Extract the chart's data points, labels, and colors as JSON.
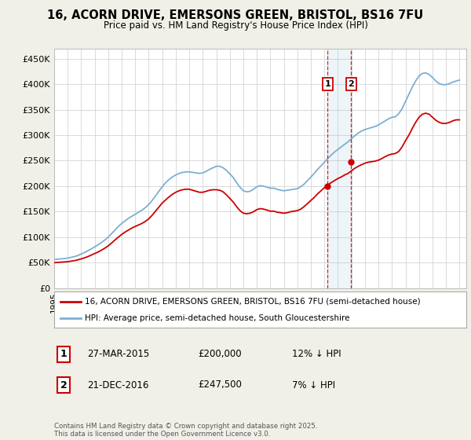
{
  "title": "16, ACORN DRIVE, EMERSONS GREEN, BRISTOL, BS16 7FU",
  "subtitle": "Price paid vs. HM Land Registry's House Price Index (HPI)",
  "ylabel_ticks": [
    "£0",
    "£50K",
    "£100K",
    "£150K",
    "£200K",
    "£250K",
    "£300K",
    "£350K",
    "£400K",
    "£450K"
  ],
  "ytick_values": [
    0,
    50000,
    100000,
    150000,
    200000,
    250000,
    300000,
    350000,
    400000,
    450000
  ],
  "ylim": [
    0,
    470000
  ],
  "xlim_start": 1995.0,
  "xlim_end": 2025.5,
  "legend_line1": "16, ACORN DRIVE, EMERSONS GREEN, BRISTOL, BS16 7FU (semi-detached house)",
  "legend_line2": "HPI: Average price, semi-detached house, South Gloucestershire",
  "sale1_date": "27-MAR-2015",
  "sale1_price": "£200,000",
  "sale1_hpi": "12% ↓ HPI",
  "sale1_label": "1",
  "sale1_x": 2015.23,
  "sale1_y": 200000,
  "sale2_date": "21-DEC-2016",
  "sale2_price": "£247,500",
  "sale2_hpi": "7% ↓ HPI",
  "sale2_label": "2",
  "sale2_x": 2016.97,
  "sale2_y": 247500,
  "footer": "Contains HM Land Registry data © Crown copyright and database right 2025.\nThis data is licensed under the Open Government Licence v3.0.",
  "line_color_red": "#cc0000",
  "line_color_blue": "#7ab0d4",
  "bg_color": "#f0f0e8",
  "plot_bg": "#ffffff",
  "hpi_data_x": [
    1995.0,
    1995.25,
    1995.5,
    1995.75,
    1996.0,
    1996.25,
    1996.5,
    1996.75,
    1997.0,
    1997.25,
    1997.5,
    1997.75,
    1998.0,
    1998.25,
    1998.5,
    1998.75,
    1999.0,
    1999.25,
    1999.5,
    1999.75,
    2000.0,
    2000.25,
    2000.5,
    2000.75,
    2001.0,
    2001.25,
    2001.5,
    2001.75,
    2002.0,
    2002.25,
    2002.5,
    2002.75,
    2003.0,
    2003.25,
    2003.5,
    2003.75,
    2004.0,
    2004.25,
    2004.5,
    2004.75,
    2005.0,
    2005.25,
    2005.5,
    2005.75,
    2006.0,
    2006.25,
    2006.5,
    2006.75,
    2007.0,
    2007.25,
    2007.5,
    2007.75,
    2008.0,
    2008.25,
    2008.5,
    2008.75,
    2009.0,
    2009.25,
    2009.5,
    2009.75,
    2010.0,
    2010.25,
    2010.5,
    2010.75,
    2011.0,
    2011.25,
    2011.5,
    2011.75,
    2012.0,
    2012.25,
    2012.5,
    2012.75,
    2013.0,
    2013.25,
    2013.5,
    2013.75,
    2014.0,
    2014.25,
    2014.5,
    2014.75,
    2015.0,
    2015.25,
    2015.5,
    2015.75,
    2016.0,
    2016.25,
    2016.5,
    2016.75,
    2017.0,
    2017.25,
    2017.5,
    2017.75,
    2018.0,
    2018.25,
    2018.5,
    2018.75,
    2019.0,
    2019.25,
    2019.5,
    2019.75,
    2020.0,
    2020.25,
    2020.5,
    2020.75,
    2021.0,
    2021.25,
    2021.5,
    2021.75,
    2022.0,
    2022.25,
    2022.5,
    2022.75,
    2023.0,
    2023.25,
    2023.5,
    2023.75,
    2024.0,
    2024.25,
    2024.5,
    2024.75,
    2025.0
  ],
  "hpi_data_y": [
    56000,
    57000,
    57500,
    58000,
    59000,
    60500,
    62000,
    64000,
    67000,
    70000,
    73500,
    77000,
    81000,
    85000,
    89500,
    94500,
    100000,
    107000,
    114000,
    121000,
    127000,
    132000,
    137000,
    141000,
    145000,
    149000,
    153000,
    158000,
    164000,
    172000,
    181000,
    190000,
    199000,
    207000,
    213000,
    218000,
    222000,
    225000,
    227000,
    228000,
    228000,
    227000,
    226000,
    225000,
    226000,
    229000,
    233000,
    236000,
    239000,
    239000,
    236000,
    231000,
    224000,
    217000,
    207000,
    198000,
    191000,
    189000,
    190000,
    194000,
    199000,
    201000,
    200000,
    198000,
    196000,
    196000,
    194000,
    192000,
    191000,
    192000,
    193000,
    194000,
    195000,
    199000,
    204000,
    211000,
    218000,
    225000,
    233000,
    240000,
    247000,
    254000,
    261000,
    267000,
    272000,
    277000,
    282000,
    287000,
    293000,
    299000,
    304000,
    308000,
    311000,
    313000,
    315000,
    317000,
    320000,
    324000,
    328000,
    332000,
    335000,
    336000,
    342000,
    352000,
    366000,
    380000,
    394000,
    406000,
    416000,
    421000,
    422000,
    419000,
    413000,
    406000,
    401000,
    399000,
    399000,
    401000,
    404000,
    406000,
    408000
  ],
  "price_data_x": [
    1995.0,
    1995.25,
    1995.5,
    1995.75,
    1996.0,
    1996.25,
    1996.5,
    1996.75,
    1997.0,
    1997.25,
    1997.5,
    1997.75,
    1998.0,
    1998.25,
    1998.5,
    1998.75,
    1999.0,
    1999.25,
    1999.5,
    1999.75,
    2000.0,
    2000.25,
    2000.5,
    2000.75,
    2001.0,
    2001.25,
    2001.5,
    2001.75,
    2002.0,
    2002.25,
    2002.5,
    2002.75,
    2003.0,
    2003.25,
    2003.5,
    2003.75,
    2004.0,
    2004.25,
    2004.5,
    2004.75,
    2005.0,
    2005.25,
    2005.5,
    2005.75,
    2006.0,
    2006.25,
    2006.5,
    2006.75,
    2007.0,
    2007.25,
    2007.5,
    2007.75,
    2008.0,
    2008.25,
    2008.5,
    2008.75,
    2009.0,
    2009.25,
    2009.5,
    2009.75,
    2010.0,
    2010.25,
    2010.5,
    2010.75,
    2011.0,
    2011.25,
    2011.5,
    2011.75,
    2012.0,
    2012.25,
    2012.5,
    2012.75,
    2013.0,
    2013.25,
    2013.5,
    2013.75,
    2014.0,
    2014.25,
    2014.5,
    2014.75,
    2015.0,
    2015.25,
    2015.5,
    2015.75,
    2016.0,
    2016.25,
    2016.5,
    2016.75,
    2017.0,
    2017.25,
    2017.5,
    2017.75,
    2018.0,
    2018.25,
    2018.5,
    2018.75,
    2019.0,
    2019.25,
    2019.5,
    2019.75,
    2020.0,
    2020.25,
    2020.5,
    2020.75,
    2021.0,
    2021.25,
    2021.5,
    2021.75,
    2022.0,
    2022.25,
    2022.5,
    2022.75,
    2023.0,
    2023.25,
    2023.5,
    2023.75,
    2024.0,
    2024.25,
    2024.5,
    2024.75,
    2025.0
  ],
  "price_data_y": [
    50000,
    50500,
    51000,
    51500,
    52000,
    53000,
    54000,
    55500,
    57500,
    59500,
    62000,
    65000,
    68000,
    71000,
    74500,
    78500,
    83000,
    88500,
    94500,
    100000,
    105500,
    110000,
    114000,
    118000,
    121000,
    124000,
    127000,
    131000,
    136000,
    143000,
    151000,
    159000,
    167000,
    173000,
    179000,
    184000,
    188000,
    191000,
    193000,
    194000,
    194000,
    192000,
    190000,
    188000,
    188000,
    190000,
    192000,
    193000,
    193000,
    192000,
    189000,
    183000,
    176000,
    169000,
    160000,
    152000,
    147000,
    146000,
    147000,
    150000,
    154000,
    156000,
    155000,
    153000,
    151000,
    151000,
    149000,
    148000,
    147000,
    148000,
    150000,
    151000,
    152000,
    155000,
    160000,
    166000,
    172000,
    178000,
    185000,
    191000,
    197000,
    202000,
    207000,
    211000,
    215000,
    218000,
    222000,
    225000,
    230000,
    235000,
    239000,
    242000,
    245000,
    247000,
    248000,
    249000,
    251000,
    254000,
    258000,
    261000,
    263000,
    264000,
    268000,
    277000,
    289000,
    300000,
    313000,
    325000,
    335000,
    341000,
    343000,
    341000,
    335000,
    329000,
    325000,
    323000,
    323000,
    325000,
    328000,
    330000,
    330000
  ]
}
